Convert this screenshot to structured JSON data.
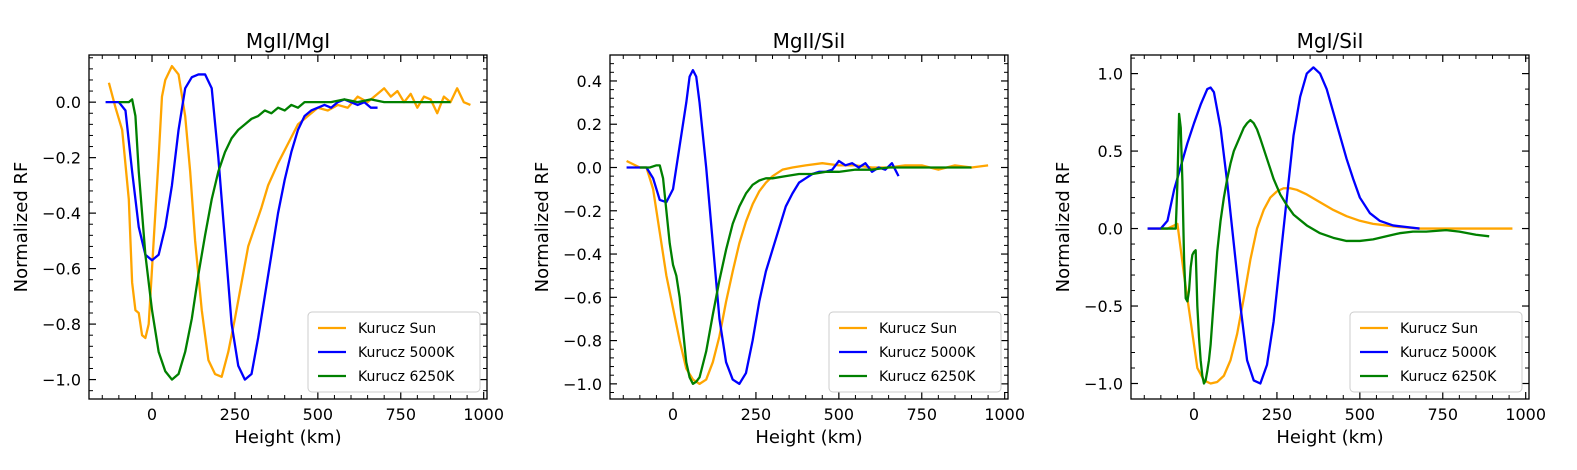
{
  "chart_data": [
    {
      "type": "line",
      "title": "MgII/MgI",
      "xlabel": "Height (km)",
      "ylabel": "Normalized RF",
      "xlim": [
        -190,
        1010
      ],
      "ylim": [
        -1.07,
        0.17
      ],
      "xticks": [
        0,
        250,
        500,
        750,
        1000
      ],
      "xtick_labels": [
        "0",
        "250",
        "500",
        "750",
        "1000"
      ],
      "yticks": [
        -1.0,
        -0.8,
        -0.6,
        -0.4,
        -0.2,
        0.0
      ],
      "ytick_labels": [
        "−1.0",
        "−0.8",
        "−0.6",
        "−0.4",
        "−0.2",
        "0.0"
      ],
      "legend_position": "lower-right",
      "series": [
        {
          "name": "Kurucz Sun",
          "color": "#ffa500",
          "x": [
            -130,
            -110,
            -90,
            -70,
            -60,
            -50,
            -40,
            -30,
            -20,
            -10,
            0,
            10,
            20,
            30,
            40,
            60,
            80,
            100,
            115,
            130,
            150,
            170,
            190,
            210,
            230,
            250,
            270,
            290,
            310,
            330,
            350,
            380,
            410,
            440,
            470,
            500,
            530,
            560,
            590,
            620,
            650,
            680,
            700,
            720,
            740,
            760,
            780,
            800,
            820,
            840,
            860,
            880,
            900,
            920,
            940,
            960
          ],
          "y": [
            0.07,
            -0.02,
            -0.1,
            -0.35,
            -0.65,
            -0.75,
            -0.76,
            -0.84,
            -0.85,
            -0.8,
            -0.6,
            -0.4,
            -0.2,
            0.02,
            0.08,
            0.13,
            0.1,
            -0.05,
            -0.25,
            -0.5,
            -0.75,
            -0.93,
            -0.98,
            -0.99,
            -0.9,
            -0.78,
            -0.65,
            -0.52,
            -0.45,
            -0.38,
            -0.3,
            -0.22,
            -0.15,
            -0.08,
            -0.05,
            -0.02,
            -0.03,
            -0.01,
            -0.02,
            0.02,
            0.0,
            0.03,
            0.05,
            0.02,
            0.04,
            0.0,
            0.03,
            -0.02,
            0.02,
            0.01,
            -0.04,
            0.02,
            0.0,
            0.05,
            0.0,
            -0.01
          ]
        },
        {
          "name": "Kurucz 5000K",
          "color": "#0000ff",
          "x": [
            -140,
            -100,
            -80,
            -60,
            -40,
            -20,
            0,
            20,
            40,
            60,
            80,
            100,
            120,
            140,
            160,
            180,
            200,
            220,
            240,
            260,
            280,
            300,
            320,
            340,
            360,
            380,
            400,
            420,
            440,
            460,
            480,
            500,
            520,
            540,
            560,
            580,
            600,
            620,
            640,
            660,
            680
          ],
          "y": [
            0.0,
            0.0,
            -0.03,
            -0.25,
            -0.45,
            -0.55,
            -0.57,
            -0.55,
            -0.45,
            -0.3,
            -0.1,
            0.05,
            0.09,
            0.1,
            0.1,
            0.05,
            -0.2,
            -0.5,
            -0.8,
            -0.95,
            -1.0,
            -0.98,
            -0.85,
            -0.7,
            -0.55,
            -0.4,
            -0.28,
            -0.18,
            -0.1,
            -0.05,
            -0.03,
            -0.02,
            -0.01,
            -0.02,
            0.0,
            0.01,
            0.0,
            -0.01,
            0.0,
            -0.02,
            -0.02
          ]
        },
        {
          "name": "Kurucz 6250K",
          "color": "#008000",
          "x": [
            -100,
            -80,
            -70,
            -60,
            -50,
            -40,
            -30,
            -20,
            0,
            20,
            40,
            60,
            80,
            100,
            120,
            140,
            160,
            180,
            200,
            220,
            240,
            260,
            280,
            300,
            320,
            340,
            360,
            380,
            400,
            420,
            440,
            460,
            500,
            540,
            580,
            620,
            660,
            700,
            750,
            800,
            850,
            900
          ],
          "y": [
            0.0,
            0.0,
            0.0,
            0.01,
            -0.05,
            -0.25,
            -0.4,
            -0.55,
            -0.75,
            -0.9,
            -0.97,
            -1.0,
            -0.98,
            -0.9,
            -0.78,
            -0.62,
            -0.48,
            -0.35,
            -0.25,
            -0.18,
            -0.13,
            -0.1,
            -0.08,
            -0.06,
            -0.05,
            -0.03,
            -0.04,
            -0.02,
            -0.03,
            -0.01,
            -0.02,
            0.0,
            0.0,
            0.0,
            0.01,
            0.0,
            0.01,
            0.0,
            0.0,
            0.0,
            0.0,
            0.0
          ]
        }
      ]
    },
    {
      "type": "line",
      "title": "MgII/SiI",
      "xlabel": "Height (km)",
      "ylabel": "Normalized RF",
      "xlim": [
        -190,
        1010
      ],
      "ylim": [
        -1.07,
        0.52
      ],
      "xticks": [
        0,
        250,
        500,
        750,
        1000
      ],
      "xtick_labels": [
        "0",
        "250",
        "500",
        "750",
        "1000"
      ],
      "yticks": [
        -1.0,
        -0.8,
        -0.6,
        -0.4,
        -0.2,
        0.0,
        0.2,
        0.4
      ],
      "ytick_labels": [
        "−1.0",
        "−0.8",
        "−0.6",
        "−0.4",
        "−0.2",
        "0.0",
        "0.2",
        "0.4"
      ],
      "legend_position": "lower-right",
      "series": [
        {
          "name": "Kurucz Sun",
          "color": "#ffa500",
          "x": [
            -140,
            -100,
            -80,
            -60,
            -40,
            -20,
            0,
            20,
            40,
            60,
            80,
            100,
            120,
            140,
            160,
            180,
            200,
            220,
            240,
            260,
            280,
            300,
            330,
            360,
            400,
            450,
            500,
            550,
            600,
            650,
            700,
            750,
            800,
            850,
            900,
            950
          ],
          "y": [
            0.03,
            0.0,
            0.0,
            -0.1,
            -0.3,
            -0.5,
            -0.65,
            -0.8,
            -0.93,
            -0.98,
            -1.0,
            -0.98,
            -0.9,
            -0.78,
            -0.62,
            -0.48,
            -0.35,
            -0.25,
            -0.17,
            -0.11,
            -0.07,
            -0.04,
            -0.01,
            0.0,
            0.01,
            0.02,
            0.01,
            0.01,
            0.0,
            0.0,
            0.01,
            0.01,
            -0.01,
            0.01,
            0.0,
            0.01
          ]
        },
        {
          "name": "Kurucz 5000K",
          "color": "#0000ff",
          "x": [
            -140,
            -80,
            -60,
            -40,
            -20,
            0,
            20,
            40,
            50,
            60,
            70,
            80,
            100,
            120,
            140,
            160,
            180,
            200,
            220,
            240,
            260,
            280,
            300,
            320,
            340,
            360,
            380,
            400,
            420,
            440,
            460,
            480,
            500,
            520,
            540,
            560,
            580,
            600,
            620,
            640,
            660,
            680
          ],
          "y": [
            0.0,
            0.0,
            -0.05,
            -0.15,
            -0.16,
            -0.1,
            0.1,
            0.3,
            0.42,
            0.45,
            0.42,
            0.3,
            0.0,
            -0.35,
            -0.7,
            -0.9,
            -0.98,
            -1.0,
            -0.95,
            -0.8,
            -0.62,
            -0.48,
            -0.38,
            -0.28,
            -0.18,
            -0.12,
            -0.07,
            -0.05,
            -0.03,
            -0.02,
            -0.02,
            -0.01,
            0.03,
            0.01,
            0.02,
            0.0,
            0.02,
            -0.02,
            0.0,
            -0.01,
            0.02,
            -0.04
          ]
        },
        {
          "name": "Kurucz 6250K",
          "color": "#008000",
          "x": [
            -100,
            -70,
            -50,
            -40,
            -30,
            -20,
            -10,
            0,
            10,
            20,
            30,
            40,
            50,
            60,
            70,
            80,
            100,
            120,
            140,
            160,
            180,
            200,
            220,
            240,
            260,
            280,
            300,
            340,
            380,
            420,
            460,
            500,
            550,
            600,
            650,
            700,
            800,
            900
          ],
          "y": [
            0.0,
            0.0,
            0.01,
            0.01,
            -0.05,
            -0.2,
            -0.35,
            -0.45,
            -0.5,
            -0.6,
            -0.75,
            -0.9,
            -0.97,
            -1.0,
            -0.99,
            -0.97,
            -0.85,
            -0.68,
            -0.52,
            -0.38,
            -0.26,
            -0.18,
            -0.12,
            -0.08,
            -0.06,
            -0.05,
            -0.05,
            -0.04,
            -0.03,
            -0.03,
            -0.02,
            -0.02,
            -0.01,
            -0.01,
            0.0,
            0.0,
            0.0,
            0.0
          ]
        }
      ]
    },
    {
      "type": "line",
      "title": "MgI/SiI",
      "xlabel": "Height (km)",
      "ylabel": "Normalized RF",
      "xlim": [
        -190,
        1010
      ],
      "ylim": [
        -1.1,
        1.12
      ],
      "xticks": [
        0,
        250,
        500,
        750,
        1000
      ],
      "xtick_labels": [
        "0",
        "250",
        "500",
        "750",
        "1000"
      ],
      "yticks": [
        -1.0,
        -0.5,
        0.0,
        0.5,
        1.0
      ],
      "ytick_labels": [
        "−1.0",
        "−0.5",
        "0.0",
        "0.5",
        "1.0"
      ],
      "legend_position": "lower-right",
      "series": [
        {
          "name": "Kurucz Sun",
          "color": "#ffa500",
          "x": [
            -140,
            -80,
            -50,
            -30,
            -10,
            10,
            30,
            50,
            70,
            90,
            110,
            130,
            150,
            170,
            190,
            210,
            230,
            250,
            270,
            290,
            310,
            340,
            380,
            420,
            460,
            500,
            540,
            580,
            620,
            680,
            760,
            850,
            960
          ],
          "y": [
            0.0,
            0.0,
            0.03,
            -0.3,
            -0.6,
            -0.9,
            -0.98,
            -1.0,
            -0.99,
            -0.95,
            -0.85,
            -0.68,
            -0.45,
            -0.2,
            0.0,
            0.12,
            0.2,
            0.24,
            0.26,
            0.26,
            0.25,
            0.22,
            0.17,
            0.12,
            0.08,
            0.05,
            0.03,
            0.02,
            0.01,
            0.0,
            0.0,
            0.0,
            0.0
          ]
        },
        {
          "name": "Kurucz 5000K",
          "color": "#0000ff",
          "x": [
            -140,
            -100,
            -80,
            -60,
            -40,
            -20,
            0,
            20,
            40,
            50,
            60,
            80,
            100,
            120,
            140,
            160,
            180,
            200,
            220,
            240,
            260,
            280,
            300,
            320,
            340,
            360,
            380,
            400,
            420,
            440,
            460,
            480,
            500,
            530,
            560,
            600,
            640,
            680
          ],
          "y": [
            0.0,
            0.0,
            0.05,
            0.25,
            0.4,
            0.55,
            0.68,
            0.8,
            0.9,
            0.91,
            0.88,
            0.65,
            0.3,
            -0.1,
            -0.5,
            -0.85,
            -0.98,
            -1.0,
            -0.88,
            -0.6,
            -0.2,
            0.2,
            0.6,
            0.85,
            1.0,
            1.04,
            1.0,
            0.9,
            0.75,
            0.6,
            0.45,
            0.32,
            0.2,
            0.1,
            0.05,
            0.02,
            0.01,
            0.0
          ]
        },
        {
          "name": "Kurucz 6250K",
          "color": "#008000",
          "x": [
            -100,
            -70,
            -55,
            -50,
            -45,
            -40,
            -35,
            -30,
            -25,
            -20,
            -15,
            -10,
            -5,
            0,
            5,
            10,
            15,
            20,
            25,
            30,
            35,
            40,
            45,
            50,
            55,
            60,
            65,
            70,
            80,
            90,
            100,
            110,
            120,
            130,
            140,
            150,
            160,
            170,
            180,
            190,
            200,
            220,
            240,
            260,
            280,
            300,
            340,
            380,
            420,
            460,
            500,
            540,
            580,
            620,
            660,
            700,
            760,
            800,
            850,
            890
          ],
          "y": [
            0.0,
            0.0,
            0.0,
            0.3,
            0.74,
            0.65,
            0.3,
            -0.2,
            -0.45,
            -0.47,
            -0.4,
            -0.25,
            -0.17,
            -0.15,
            -0.14,
            -0.5,
            -0.7,
            -0.85,
            -0.95,
            -1.0,
            -0.98,
            -0.92,
            -0.85,
            -0.75,
            -0.6,
            -0.45,
            -0.3,
            -0.15,
            0.05,
            0.2,
            0.32,
            0.42,
            0.5,
            0.55,
            0.6,
            0.65,
            0.68,
            0.7,
            0.68,
            0.64,
            0.58,
            0.45,
            0.32,
            0.22,
            0.15,
            0.09,
            0.02,
            -0.03,
            -0.06,
            -0.08,
            -0.08,
            -0.07,
            -0.05,
            -0.03,
            -0.02,
            -0.02,
            -0.01,
            -0.02,
            -0.04,
            -0.05
          ]
        }
      ]
    }
  ]
}
